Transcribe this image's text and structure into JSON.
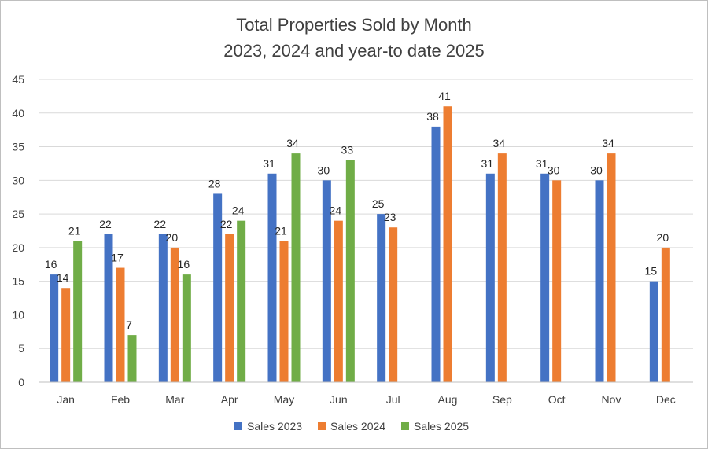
{
  "chart_data": {
    "type": "bar",
    "title": "Total Properties Sold by Month",
    "subtitle": "2023, 2024 and year-to date 2025",
    "xlabel": "",
    "ylabel": "",
    "ylim": [
      0,
      45
    ],
    "yticks": [
      0,
      5,
      10,
      15,
      20,
      25,
      30,
      35,
      40,
      45
    ],
    "grid": true,
    "legend": "bottom",
    "categories": [
      "Jan",
      "Feb",
      "Mar",
      "Apr",
      "May",
      "Jun",
      "Jul",
      "Aug",
      "Sep",
      "Oct",
      "Nov",
      "Dec"
    ],
    "series": [
      {
        "name": "Sales 2023",
        "color": "#4472C4",
        "values": [
          16,
          22,
          22,
          28,
          31,
          30,
          25,
          38,
          31,
          31,
          30,
          15
        ]
      },
      {
        "name": "Sales 2024",
        "color": "#ED7D31",
        "values": [
          14,
          17,
          20,
          22,
          21,
          24,
          23,
          41,
          34,
          30,
          34,
          20
        ]
      },
      {
        "name": "Sales 2025",
        "color": "#70AD47",
        "values": [
          21,
          7,
          16,
          24,
          34,
          33,
          null,
          null,
          null,
          null,
          null,
          null
        ]
      }
    ]
  }
}
